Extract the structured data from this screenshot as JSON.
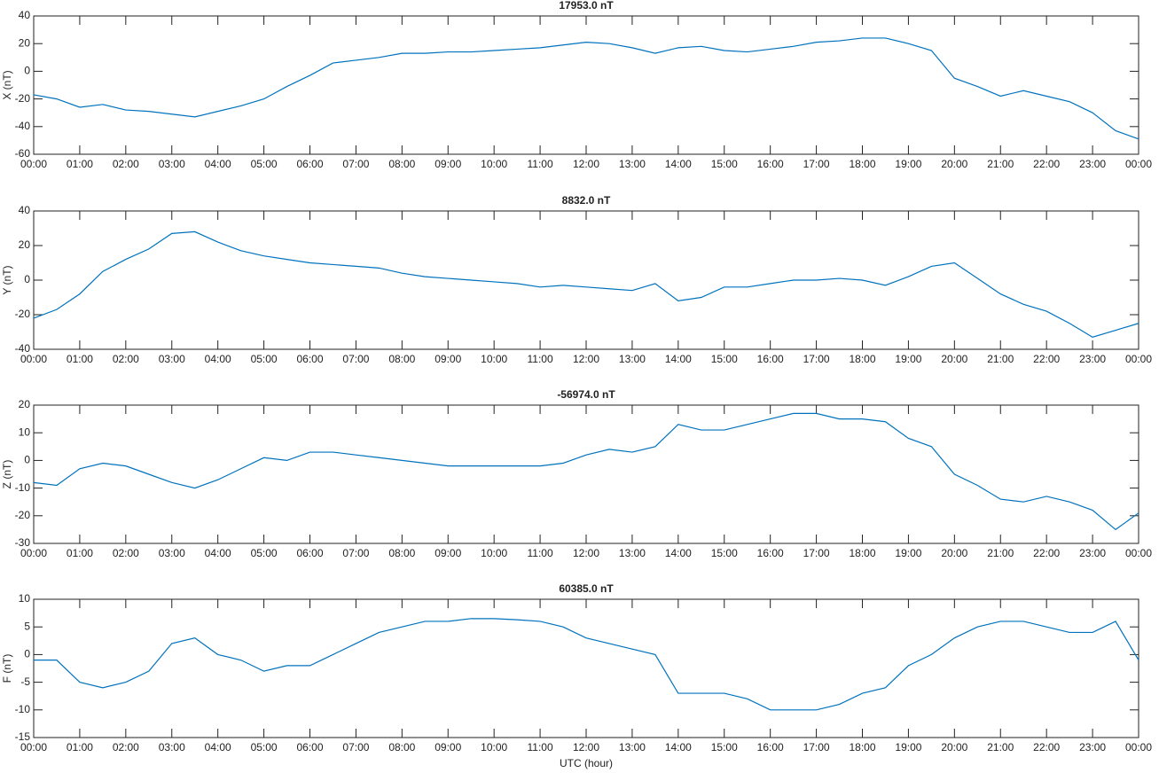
{
  "chart_data": [
    {
      "type": "line",
      "title": "17953.0 nT",
      "y_label": "X (nT)",
      "x": [
        0,
        0.5,
        1,
        1.5,
        2,
        2.5,
        3,
        3.5,
        4,
        4.5,
        5,
        5.5,
        6,
        6.5,
        7,
        7.5,
        8,
        8.5,
        9,
        9.5,
        10,
        10.5,
        11,
        11.5,
        12,
        12.5,
        13,
        13.5,
        14,
        14.5,
        15,
        15.5,
        16,
        16.5,
        17,
        17.5,
        18,
        18.5,
        19,
        19.5,
        20,
        20.5,
        21,
        21.5,
        22,
        22.5,
        23,
        23.5,
        24
      ],
      "series": [
        {
          "color": "#0072bd",
          "values": [
            -17,
            -20,
            -26,
            -24,
            -28,
            -29,
            -31,
            -33,
            -29,
            -25,
            -20,
            -11,
            -3,
            6,
            8,
            10,
            13,
            13,
            14,
            14,
            15,
            16,
            17,
            19,
            21,
            20,
            17,
            13,
            17,
            18,
            15,
            14,
            16,
            18,
            21,
            22,
            24,
            24,
            20,
            15,
            -5,
            -11,
            -18,
            -14,
            -18,
            -22,
            -30,
            -43,
            -49
          ]
        }
      ],
      "xlim": [
        0,
        24
      ],
      "xticks": [
        {
          "value": 0,
          "label": "00:00"
        },
        {
          "value": 1,
          "label": "01:00"
        },
        {
          "value": 2,
          "label": "02:00"
        },
        {
          "value": 3,
          "label": "03:00"
        },
        {
          "value": 4,
          "label": "04:00"
        },
        {
          "value": 5,
          "label": "05:00"
        },
        {
          "value": 6,
          "label": "06:00"
        },
        {
          "value": 7,
          "label": "07:00"
        },
        {
          "value": 8,
          "label": "08:00"
        },
        {
          "value": 9,
          "label": "09:00"
        },
        {
          "value": 10,
          "label": "10:00"
        },
        {
          "value": 11,
          "label": "11:00"
        },
        {
          "value": 12,
          "label": "12:00"
        },
        {
          "value": 13,
          "label": "13:00"
        },
        {
          "value": 14,
          "label": "14:00"
        },
        {
          "value": 15,
          "label": "15:00"
        },
        {
          "value": 16,
          "label": "16:00"
        },
        {
          "value": 17,
          "label": "17:00"
        },
        {
          "value": 18,
          "label": "18:00"
        },
        {
          "value": 19,
          "label": "19:00"
        },
        {
          "value": 20,
          "label": "20:00"
        },
        {
          "value": 21,
          "label": "21:00"
        },
        {
          "value": 22,
          "label": "22:00"
        },
        {
          "value": 23,
          "label": "23:00"
        },
        {
          "value": 24,
          "label": "00:00"
        }
      ],
      "ylim": [
        -60,
        40
      ],
      "yticks": [
        -60,
        -40,
        -20,
        0,
        20,
        40
      ]
    },
    {
      "type": "line",
      "title": "8832.0 nT",
      "y_label": "Y (nT)",
      "x": [
        0,
        0.5,
        1,
        1.5,
        2,
        2.5,
        3,
        3.5,
        4,
        4.5,
        5,
        5.5,
        6,
        6.5,
        7,
        7.5,
        8,
        8.5,
        9,
        9.5,
        10,
        10.5,
        11,
        11.5,
        12,
        12.5,
        13,
        13.5,
        14,
        14.5,
        15,
        15.5,
        16,
        16.5,
        17,
        17.5,
        18,
        18.5,
        19,
        19.5,
        20,
        20.5,
        21,
        21.5,
        22,
        22.5,
        23,
        23.5,
        24
      ],
      "series": [
        {
          "color": "#0072bd",
          "values": [
            -22,
            -17,
            -8,
            5,
            12,
            18,
            27,
            28,
            22,
            17,
            14,
            12,
            10,
            9,
            8,
            7,
            4,
            2,
            1,
            0,
            -1,
            -2,
            -4,
            -3,
            -4,
            -5,
            -6,
            -2,
            -12,
            -10,
            -4,
            -4,
            -2,
            0,
            0,
            1,
            0,
            -3,
            2,
            8,
            10,
            1,
            -8,
            -14,
            -18,
            -25,
            -33,
            -29,
            -25
          ]
        }
      ],
      "xlim": [
        0,
        24
      ],
      "xticks": [
        {
          "value": 0,
          "label": "00:00"
        },
        {
          "value": 1,
          "label": "01:00"
        },
        {
          "value": 2,
          "label": "02:00"
        },
        {
          "value": 3,
          "label": "03:00"
        },
        {
          "value": 4,
          "label": "04:00"
        },
        {
          "value": 5,
          "label": "05:00"
        },
        {
          "value": 6,
          "label": "06:00"
        },
        {
          "value": 7,
          "label": "07:00"
        },
        {
          "value": 8,
          "label": "08:00"
        },
        {
          "value": 9,
          "label": "09:00"
        },
        {
          "value": 10,
          "label": "10:00"
        },
        {
          "value": 11,
          "label": "11:00"
        },
        {
          "value": 12,
          "label": "12:00"
        },
        {
          "value": 13,
          "label": "13:00"
        },
        {
          "value": 14,
          "label": "14:00"
        },
        {
          "value": 15,
          "label": "15:00"
        },
        {
          "value": 16,
          "label": "16:00"
        },
        {
          "value": 17,
          "label": "17:00"
        },
        {
          "value": 18,
          "label": "18:00"
        },
        {
          "value": 19,
          "label": "19:00"
        },
        {
          "value": 20,
          "label": "20:00"
        },
        {
          "value": 21,
          "label": "21:00"
        },
        {
          "value": 22,
          "label": "22:00"
        },
        {
          "value": 23,
          "label": "23:00"
        },
        {
          "value": 24,
          "label": "00:00"
        }
      ],
      "ylim": [
        -40,
        40
      ],
      "yticks": [
        -40,
        -20,
        0,
        20,
        40
      ]
    },
    {
      "type": "line",
      "title": "-56974.0 nT",
      "y_label": "Z (nT)",
      "x": [
        0,
        0.5,
        1,
        1.5,
        2,
        2.5,
        3,
        3.5,
        4,
        4.5,
        5,
        5.5,
        6,
        6.5,
        7,
        7.5,
        8,
        8.5,
        9,
        9.5,
        10,
        10.5,
        11,
        11.5,
        12,
        12.5,
        13,
        13.5,
        14,
        14.5,
        15,
        15.5,
        16,
        16.5,
        17,
        17.5,
        18,
        18.5,
        19,
        19.5,
        20,
        20.5,
        21,
        21.5,
        22,
        22.5,
        23,
        23.5,
        24
      ],
      "series": [
        {
          "color": "#0072bd",
          "values": [
            -8,
            -9,
            -3,
            -1,
            -2,
            -5,
            -8,
            -10,
            -7,
            -3,
            1,
            0,
            3,
            3,
            2,
            1,
            0,
            -1,
            -2,
            -2,
            -2,
            -2,
            -2,
            -1,
            2,
            4,
            3,
            5,
            13,
            11,
            11,
            13,
            15,
            17,
            17,
            15,
            15,
            14,
            8,
            5,
            -5,
            -9,
            -14,
            -15,
            -13,
            -15,
            -18,
            -25,
            -19
          ]
        }
      ],
      "xlim": [
        0,
        24
      ],
      "xticks": [
        {
          "value": 0,
          "label": "00:00"
        },
        {
          "value": 1,
          "label": "01:00"
        },
        {
          "value": 2,
          "label": "02:00"
        },
        {
          "value": 3,
          "label": "03:00"
        },
        {
          "value": 4,
          "label": "04:00"
        },
        {
          "value": 5,
          "label": "05:00"
        },
        {
          "value": 6,
          "label": "06:00"
        },
        {
          "value": 7,
          "label": "07:00"
        },
        {
          "value": 8,
          "label": "08:00"
        },
        {
          "value": 9,
          "label": "09:00"
        },
        {
          "value": 10,
          "label": "10:00"
        },
        {
          "value": 11,
          "label": "11:00"
        },
        {
          "value": 12,
          "label": "12:00"
        },
        {
          "value": 13,
          "label": "13:00"
        },
        {
          "value": 14,
          "label": "14:00"
        },
        {
          "value": 15,
          "label": "15:00"
        },
        {
          "value": 16,
          "label": "16:00"
        },
        {
          "value": 17,
          "label": "17:00"
        },
        {
          "value": 18,
          "label": "18:00"
        },
        {
          "value": 19,
          "label": "19:00"
        },
        {
          "value": 20,
          "label": "20:00"
        },
        {
          "value": 21,
          "label": "21:00"
        },
        {
          "value": 22,
          "label": "22:00"
        },
        {
          "value": 23,
          "label": "23:00"
        },
        {
          "value": 24,
          "label": "00:00"
        }
      ],
      "ylim": [
        -30,
        20
      ],
      "yticks": [
        -30,
        -20,
        -10,
        0,
        10,
        20
      ]
    },
    {
      "type": "line",
      "title": "60385.0 nT",
      "y_label": "F (nT)",
      "x_label": "UTC (hour)",
      "x": [
        0,
        0.5,
        1,
        1.5,
        2,
        2.5,
        3,
        3.5,
        4,
        4.5,
        5,
        5.5,
        6,
        6.5,
        7,
        7.5,
        8,
        8.5,
        9,
        9.5,
        10,
        10.5,
        11,
        11.5,
        12,
        12.5,
        13,
        13.5,
        14,
        14.5,
        15,
        15.5,
        16,
        16.5,
        17,
        17.5,
        18,
        18.5,
        19,
        19.5,
        20,
        20.5,
        21,
        21.5,
        22,
        22.5,
        23,
        23.5,
        24
      ],
      "series": [
        {
          "color": "#0072bd",
          "values": [
            -1,
            -1,
            -5,
            -6,
            -5,
            -3,
            2,
            3,
            0,
            -1,
            -3,
            -2,
            -2,
            0,
            2,
            4,
            5,
            6,
            6,
            6.5,
            6.5,
            6.3,
            6,
            5,
            3,
            2,
            1,
            0,
            -7,
            -7,
            -7,
            -8,
            -10,
            -10,
            -10,
            -9,
            -7,
            -6,
            -2,
            0,
            3,
            5,
            6,
            6,
            5,
            4,
            4,
            6,
            -1
          ]
        }
      ],
      "xlim": [
        0,
        24
      ],
      "xticks": [
        {
          "value": 0,
          "label": "00:00"
        },
        {
          "value": 1,
          "label": "01:00"
        },
        {
          "value": 2,
          "label": "02:00"
        },
        {
          "value": 3,
          "label": "03:00"
        },
        {
          "value": 4,
          "label": "04:00"
        },
        {
          "value": 5,
          "label": "05:00"
        },
        {
          "value": 6,
          "label": "06:00"
        },
        {
          "value": 7,
          "label": "07:00"
        },
        {
          "value": 8,
          "label": "08:00"
        },
        {
          "value": 9,
          "label": "09:00"
        },
        {
          "value": 10,
          "label": "10:00"
        },
        {
          "value": 11,
          "label": "11:00"
        },
        {
          "value": 12,
          "label": "12:00"
        },
        {
          "value": 13,
          "label": "13:00"
        },
        {
          "value": 14,
          "label": "14:00"
        },
        {
          "value": 15,
          "label": "15:00"
        },
        {
          "value": 16,
          "label": "16:00"
        },
        {
          "value": 17,
          "label": "17:00"
        },
        {
          "value": 18,
          "label": "18:00"
        },
        {
          "value": 19,
          "label": "19:00"
        },
        {
          "value": 20,
          "label": "20:00"
        },
        {
          "value": 21,
          "label": "21:00"
        },
        {
          "value": 22,
          "label": "22:00"
        },
        {
          "value": 23,
          "label": "23:00"
        },
        {
          "value": 24,
          "label": "00:00"
        }
      ],
      "ylim": [
        -15,
        10
      ],
      "yticks": [
        -15,
        -10,
        -5,
        0,
        5,
        10
      ]
    }
  ]
}
